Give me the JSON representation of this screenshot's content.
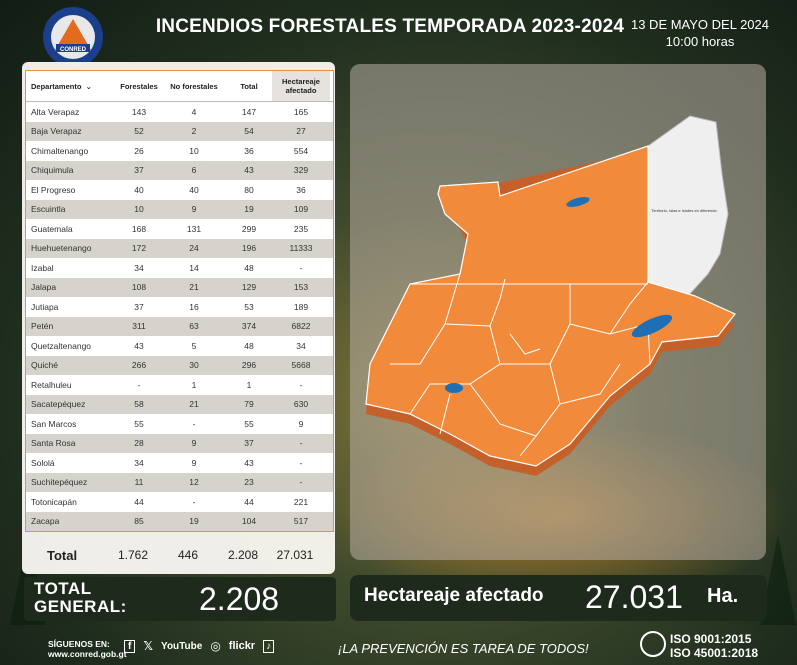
{
  "header": {
    "title": "INCENDIOS FORESTALES TEMPORADA 2023-2024",
    "date": "13 DE MAYO DEL 2024",
    "time": "10:00 horas",
    "logo_text": "CONRED"
  },
  "table": {
    "headers": [
      "Departamento",
      "Forestales",
      "No forestales",
      "Total",
      "Hectareaje afectado"
    ],
    "rows": [
      [
        "Alta Verapaz",
        "143",
        "4",
        "147",
        "165"
      ],
      [
        "Baja Verapaz",
        "52",
        "2",
        "54",
        "27"
      ],
      [
        "Chimaltenango",
        "26",
        "10",
        "36",
        "554"
      ],
      [
        "Chiquimula",
        "37",
        "6",
        "43",
        "329"
      ],
      [
        "El Progreso",
        "40",
        "40",
        "80",
        "36"
      ],
      [
        "Escuintla",
        "10",
        "9",
        "19",
        "109"
      ],
      [
        "Guatemala",
        "168",
        "131",
        "299",
        "235"
      ],
      [
        "Huehuetenango",
        "172",
        "24",
        "196",
        "11333"
      ],
      [
        "Izabal",
        "34",
        "14",
        "48",
        "-"
      ],
      [
        "Jalapa",
        "108",
        "21",
        "129",
        "153"
      ],
      [
        "Jutiapa",
        "37",
        "16",
        "53",
        "189"
      ],
      [
        "Petén",
        "311",
        "63",
        "374",
        "6822"
      ],
      [
        "Quetzaltenango",
        "43",
        "5",
        "48",
        "34"
      ],
      [
        "Quiché",
        "266",
        "30",
        "296",
        "5668"
      ],
      [
        "Retalhuleu",
        "-",
        "1",
        "1",
        "-"
      ],
      [
        "Sacatepéquez",
        "58",
        "21",
        "79",
        "630"
      ],
      [
        "San Marcos",
        "55",
        "-",
        "55",
        "9"
      ],
      [
        "Santa Rosa",
        "28",
        "9",
        "37",
        "-"
      ],
      [
        "Sololá",
        "34",
        "9",
        "43",
        "-"
      ],
      [
        "Suchitepéquez",
        "11",
        "12",
        "23",
        "-"
      ],
      [
        "Totonicapán",
        "44",
        "-",
        "44",
        "221"
      ],
      [
        "Zacapa",
        "85",
        "19",
        "104",
        "517"
      ]
    ],
    "total": {
      "label": "Total",
      "forestales": "1.762",
      "no_forestales": "446",
      "total": "2.208",
      "hectareaje": "27.031"
    }
  },
  "totals": {
    "general_label_1": "TOTAL",
    "general_label_2": "GENERAL:",
    "general_value": "2.208",
    "hectareaje_label": "Hectareaje afectado",
    "hectareaje_value": "27.031",
    "hectareaje_unit": "Ha."
  },
  "map": {
    "territory_note": "Territorio, Islas e Islotes en diferendo"
  },
  "footer": {
    "siguenos": "SÍGUENOS EN:",
    "website": "www.conred.gob.gt",
    "social": [
      "f",
      "𝕏",
      "YouTube",
      "◎",
      "flickr",
      "♪"
    ],
    "slogan": "¡LA PREVENCIÓN ES TAREA DE TODOS!",
    "iso1": "ISO 9001:2015",
    "iso2": "ISO 45001:2018"
  },
  "colors": {
    "map_orange": "#f28a3b",
    "panel_dark": "#1e2a1c",
    "table_border": "#e8923a"
  }
}
